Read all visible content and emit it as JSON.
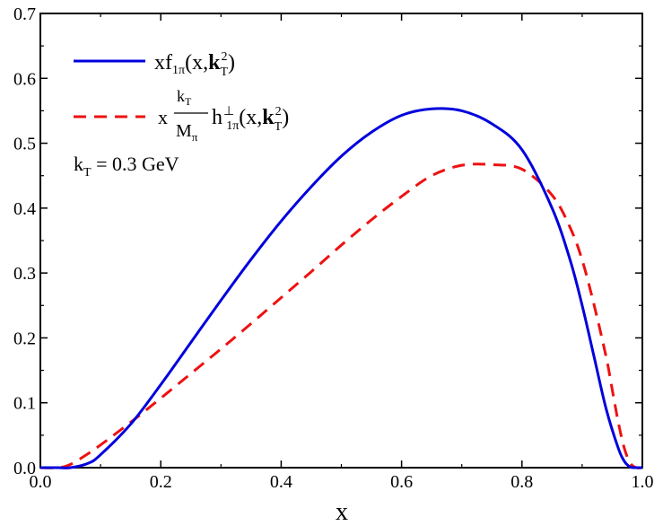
{
  "chart_data": {
    "type": "line",
    "title": "",
    "xlabel": "x",
    "ylabel": "",
    "xlim": [
      0.0,
      1.0
    ],
    "ylim": [
      0.0,
      0.7
    ],
    "x_tick_labels": [
      "0.0",
      "0.2",
      "0.4",
      "0.6",
      "0.8",
      "1.0"
    ],
    "y_tick_labels": [
      "0.0",
      "0.1",
      "0.2",
      "0.3",
      "0.4",
      "0.5",
      "0.6",
      "0.7"
    ],
    "grid": false,
    "legend_position": "top-left",
    "annotation": {
      "text": "k",
      "sub": "T",
      "rest": " = 0.3 GeV"
    },
    "series": [
      {
        "id": "f1pi",
        "color": "#0000dd",
        "dash": "solid",
        "x": [
          0.0,
          0.03,
          0.05,
          0.08,
          0.1,
          0.15,
          0.2,
          0.25,
          0.3,
          0.35,
          0.4,
          0.45,
          0.5,
          0.55,
          0.6,
          0.65,
          0.7,
          0.75,
          0.8,
          0.85,
          0.88,
          0.9,
          0.92,
          0.94,
          0.96,
          0.97,
          0.98,
          0.99,
          1.0
        ],
        "y": [
          0.0,
          0.0,
          0.0,
          0.007,
          0.02,
          0.067,
          0.128,
          0.193,
          0.258,
          0.321,
          0.38,
          0.433,
          0.48,
          0.517,
          0.543,
          0.553,
          0.55,
          0.53,
          0.49,
          0.4,
          0.32,
          0.25,
          0.17,
          0.09,
          0.03,
          0.01,
          0.001,
          0.0,
          0.0
        ]
      },
      {
        "id": "h1pi-perp",
        "color": "#ee1111",
        "dash": "dashed",
        "x": [
          0.0,
          0.03,
          0.05,
          0.08,
          0.1,
          0.15,
          0.2,
          0.25,
          0.3,
          0.35,
          0.4,
          0.45,
          0.5,
          0.55,
          0.6,
          0.65,
          0.7,
          0.75,
          0.8,
          0.85,
          0.88,
          0.9,
          0.92,
          0.94,
          0.95,
          0.96,
          0.97,
          0.98,
          0.99,
          1.0
        ],
        "y": [
          0.0,
          0.0,
          0.005,
          0.022,
          0.035,
          0.07,
          0.107,
          0.145,
          0.183,
          0.222,
          0.262,
          0.302,
          0.343,
          0.382,
          0.418,
          0.45,
          0.466,
          0.467,
          0.46,
          0.42,
          0.37,
          0.32,
          0.25,
          0.17,
          0.12,
          0.07,
          0.03,
          0.007,
          0.0,
          0.0
        ]
      }
    ],
    "legend": [
      {
        "series": "f1pi",
        "prefix": "xf",
        "sub": "1π",
        "args_open": "(x,",
        "bold": "k",
        "bold_sub": "T",
        "sup": "2",
        "args_close": ")"
      },
      {
        "series": "h1pi-perp",
        "prefix": "x",
        "frac_num": "k",
        "frac_num_sub": "T",
        "frac_den": "M",
        "frac_den_sub": "π",
        "func": "h",
        "func_sup": "⊥",
        "func_sub": "1π",
        "args_open": "(x,",
        "bold": "k",
        "bold_sub": "T",
        "sup": "2",
        "args_close": ")"
      }
    ]
  }
}
